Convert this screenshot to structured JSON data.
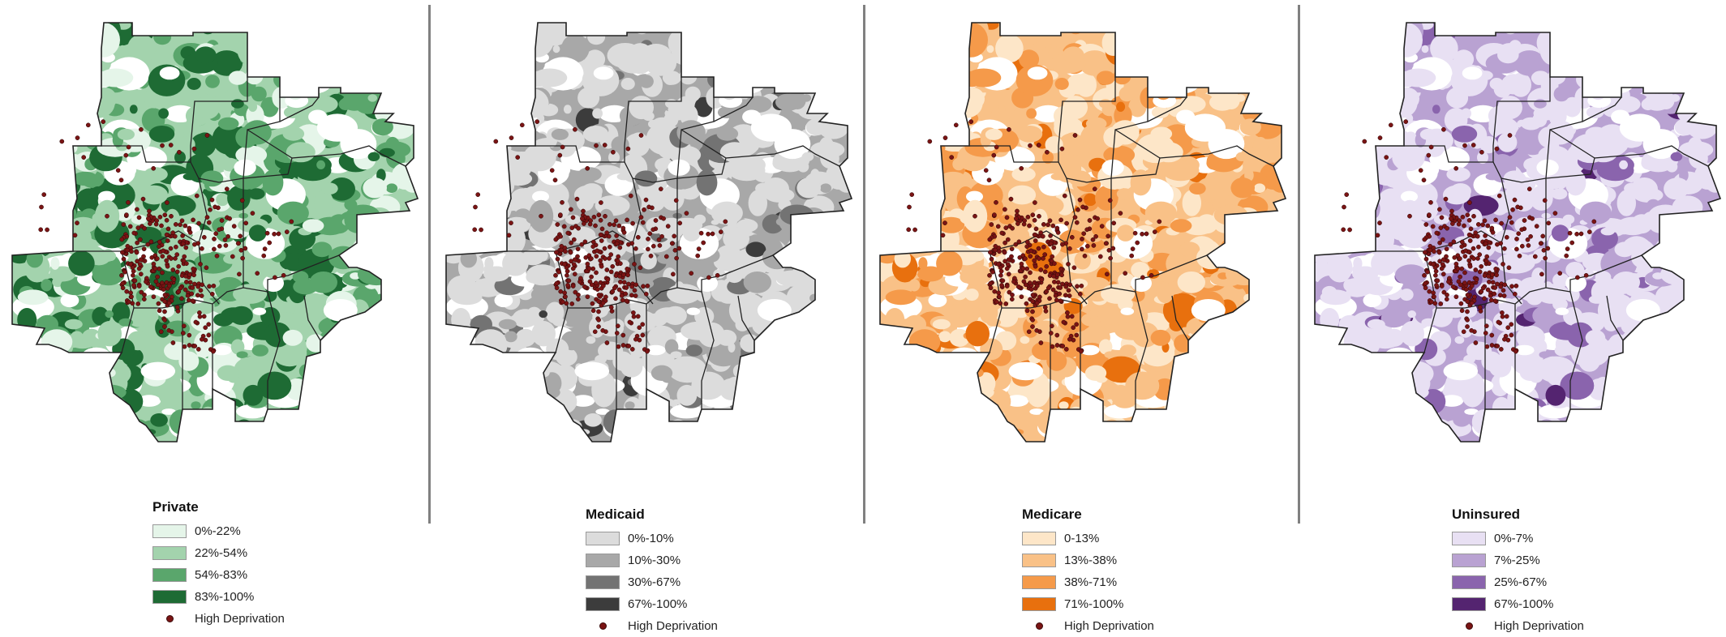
{
  "panels": [
    {
      "id": "private",
      "title": "Private",
      "colors": [
        "#e5f5e9",
        "#a3d3ad",
        "#5aa66c",
        "#1e6b34"
      ],
      "classes": [
        "0%-22%",
        "22%-54%",
        "54%-83%",
        "83%-100%"
      ],
      "dot_label": "High Deprivation"
    },
    {
      "id": "medicaid",
      "title": "Medicaid",
      "colors": [
        "#dcdcdc",
        "#a8a8a8",
        "#737373",
        "#3c3c3c"
      ],
      "classes": [
        "0%-10%",
        "10%-30%",
        "30%-67%",
        "67%-100%"
      ],
      "dot_label": "High Deprivation"
    },
    {
      "id": "medicare",
      "title": "Medicare",
      "colors": [
        "#fde6c8",
        "#f9c187",
        "#f59a4a",
        "#e8700e"
      ],
      "classes": [
        "0-13%",
        "13%-38%",
        "38%-71%",
        "71%-100%"
      ],
      "dot_label": "High Deprivation"
    },
    {
      "id": "uninsured",
      "title": "Uninsured",
      "colors": [
        "#e8e0f3",
        "#b9a2d2",
        "#8a64ad",
        "#542470"
      ],
      "classes": [
        "0%-7%",
        "7%-25%",
        "25%-67%",
        "67%-100%"
      ],
      "dot_label": "High Deprivation"
    }
  ],
  "colors": {
    "deprivation_dot": "#7a1414",
    "county_border": "#222222",
    "divider": "#808080"
  }
}
